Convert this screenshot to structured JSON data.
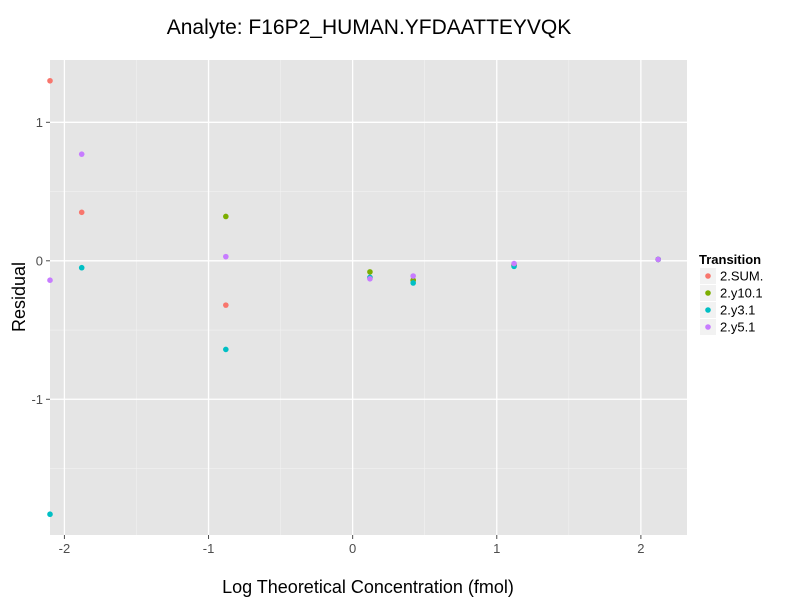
{
  "chart_data": {
    "type": "scatter",
    "title": "Analyte: F16P2_HUMAN.YFDAATTEYVQK",
    "xlabel": "Log Theoretical Concentration (fmol)",
    "ylabel": "Residual",
    "xlim": [
      -2.1,
      2.32
    ],
    "ylim": [
      -1.98,
      1.45
    ],
    "x_ticks": [
      -2,
      -1,
      0,
      1,
      2
    ],
    "x_tick_labels": [
      "-2",
      "-1",
      "0",
      "1",
      "2"
    ],
    "y_ticks": [
      -1,
      0,
      1
    ],
    "y_tick_labels": [
      "-1",
      "0",
      "1"
    ],
    "grid": true,
    "legend": {
      "title": "Transition",
      "placement": "right"
    },
    "series": [
      {
        "name": "2.SUM.",
        "color": "#F8766D",
        "points": [
          {
            "x": -2.1,
            "y": 1.3
          },
          {
            "x": -1.88,
            "y": 0.35
          },
          {
            "x": -0.88,
            "y": -0.32
          },
          {
            "x": 0.12,
            "y": -0.12
          },
          {
            "x": 0.42,
            "y": -0.14
          },
          {
            "x": 1.12,
            "y": -0.03
          },
          {
            "x": 2.12,
            "y": 0.01
          }
        ]
      },
      {
        "name": "2.y10.1",
        "color": "#7CAE00",
        "points": [
          {
            "x": -0.88,
            "y": 0.32
          },
          {
            "x": 0.12,
            "y": -0.08
          },
          {
            "x": 0.42,
            "y": -0.14
          },
          {
            "x": 1.12,
            "y": -0.03
          },
          {
            "x": 2.12,
            "y": 0.01
          }
        ]
      },
      {
        "name": "2.y3.1",
        "color": "#00BFC4",
        "points": [
          {
            "x": -2.1,
            "y": -1.83
          },
          {
            "x": -1.88,
            "y": -0.05
          },
          {
            "x": -0.88,
            "y": -0.64
          },
          {
            "x": 0.12,
            "y": -0.12
          },
          {
            "x": 0.42,
            "y": -0.16
          },
          {
            "x": 1.12,
            "y": -0.04
          },
          {
            "x": 2.12,
            "y": 0.01
          }
        ]
      },
      {
        "name": "2.y5.1",
        "color": "#C77CFF",
        "points": [
          {
            "x": -2.1,
            "y": -0.14
          },
          {
            "x": -1.88,
            "y": 0.77
          },
          {
            "x": -0.88,
            "y": 0.03
          },
          {
            "x": 0.12,
            "y": -0.13
          },
          {
            "x": 0.42,
            "y": -0.11
          },
          {
            "x": 1.12,
            "y": -0.02
          },
          {
            "x": 2.12,
            "y": 0.01
          }
        ]
      }
    ]
  }
}
